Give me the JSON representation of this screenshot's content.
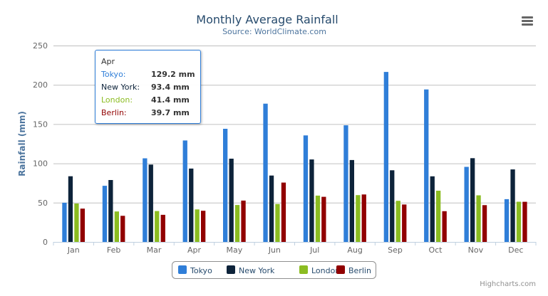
{
  "chart_data": {
    "type": "bar",
    "title": "Monthly Average Rainfall",
    "subtitle": "Source: WorldClimate.com",
    "xlabel": "",
    "ylabel": "Rainfall (mm)",
    "ylim": [
      0,
      250
    ],
    "yticks": [
      "0",
      "50",
      "100",
      "150",
      "200",
      "250"
    ],
    "grid": true,
    "legend_position": "bottom",
    "categories": [
      "Jan",
      "Feb",
      "Mar",
      "Apr",
      "May",
      "Jun",
      "Jul",
      "Aug",
      "Sep",
      "Oct",
      "Nov",
      "Dec"
    ],
    "series": [
      {
        "name": "Tokyo",
        "color": "#2f7ed8",
        "values": [
          49.9,
          71.5,
          106.4,
          129.2,
          144.0,
          176.0,
          135.6,
          148.5,
          216.4,
          194.1,
          95.6,
          54.4
        ]
      },
      {
        "name": "New York",
        "color": "#0d233a",
        "values": [
          83.6,
          78.8,
          98.5,
          93.4,
          106.0,
          84.5,
          105.0,
          104.3,
          91.2,
          83.5,
          106.6,
          92.3
        ]
      },
      {
        "name": "London",
        "color": "#8bbc21",
        "values": [
          48.9,
          38.8,
          39.3,
          41.4,
          47.0,
          48.3,
          59.0,
          59.6,
          52.4,
          65.2,
          59.3,
          51.2
        ]
      },
      {
        "name": "Berlin",
        "color": "#910000",
        "values": [
          42.4,
          33.2,
          34.5,
          39.7,
          52.6,
          75.5,
          57.4,
          60.4,
          47.6,
          39.1,
          46.8,
          51.1
        ]
      }
    ]
  },
  "tooltip": {
    "header": "Apr",
    "rows": [
      {
        "label": "Tokyo:",
        "value": "129.2 mm"
      },
      {
        "label": "New York:",
        "value": "93.4 mm"
      },
      {
        "label": "London:",
        "value": "41.4 mm"
      },
      {
        "label": "Berlin:",
        "value": "39.7 mm"
      }
    ]
  },
  "credits": "Highcharts.com",
  "menu_icon": "hamburger-menu-icon"
}
